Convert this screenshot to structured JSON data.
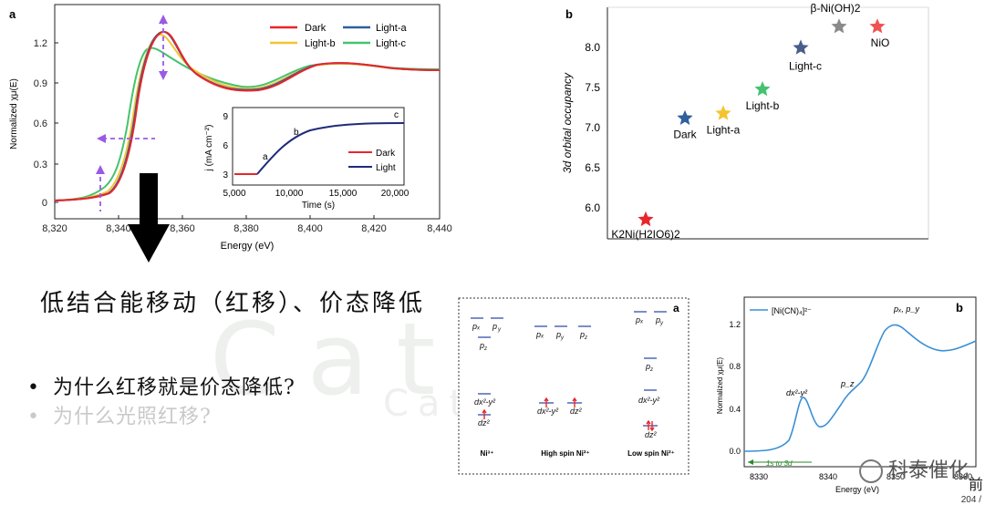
{
  "panels": {
    "xanes": {
      "letter": "a",
      "xlabel": "Energy (eV)",
      "ylabel": "Normalized χμ(E)",
      "xticks": [
        "8,320",
        "8,340",
        "8,360",
        "8,380",
        "8,400",
        "8,420",
        "8,440"
      ],
      "yticks": [
        "0",
        "0.3",
        "0.6",
        "0.9",
        "1.2"
      ],
      "legend": [
        "Dark",
        "Light-a",
        "Light-b",
        "Light-c"
      ],
      "colors": {
        "dark": "#e8262b",
        "light_a": "#2f5f9e",
        "light_b": "#f4c430",
        "light_c": "#45c26f",
        "arrow": "#9b59e6"
      }
    },
    "inset": {
      "ylabel": "j (mA cm⁻²)",
      "xlabel": "Time (s)",
      "xticks": [
        "5,000",
        "10,000",
        "15,000",
        "20,000"
      ],
      "yticks": [
        "3",
        "6",
        "9"
      ],
      "labels": [
        "a",
        "b",
        "c"
      ],
      "legend": [
        "Dark",
        "Light"
      ],
      "colors": {
        "dark": "#e8262b",
        "light": "#1f2a7a"
      }
    },
    "occupancy": {
      "letter": "b",
      "ylabel": "3d orbital occupancy",
      "yticks": [
        "6.0",
        "6.5",
        "7.0",
        "7.5",
        "8.0"
      ]
    },
    "orbitals": {
      "letter": "a",
      "columns": [
        "Ni³⁺",
        "High spin Ni²⁺",
        "Low spin Ni²⁺"
      ]
    },
    "nicn": {
      "letter": "b",
      "legend": "[Ni(CN)₄]²⁻",
      "xlabel": "Energy (eV)",
      "ylabel": "Normalized χμ(E)",
      "xticks": [
        "8330",
        "8340",
        "8350",
        "8360"
      ],
      "yticks": [
        "0.0",
        "0.4",
        "0.8",
        "1.2"
      ],
      "peak_main": "pₓ, p_y",
      "peak_pz": "p_z",
      "peak_d": "dx²-y²",
      "transition": "1s to 3d"
    }
  },
  "chart_data": [
    {
      "type": "scatter",
      "title": "",
      "ylabel": "3d orbital occupancy",
      "ylim": [
        5.8,
        8.2
      ],
      "points": [
        {
          "label": "K2Ni(H2IO6)2",
          "y": 6.0,
          "color": "#e8262b"
        },
        {
          "label": "Dark",
          "y": 7.05,
          "color": "#2f5f9e"
        },
        {
          "label": "Light-a",
          "y": 7.1,
          "color": "#f4c430"
        },
        {
          "label": "Light-b",
          "y": 7.35,
          "color": "#45c26f"
        },
        {
          "label": "Light-c",
          "y": 7.78,
          "color": "#4a5c8a"
        },
        {
          "label": "β-Ni(OH)2",
          "y": 8.0,
          "color": "#8a8a8a"
        },
        {
          "label": "NiO",
          "y": 8.0,
          "color": "#ef5350"
        }
      ]
    }
  ],
  "text": {
    "heading": "低结合能移动（红移）、价态降低",
    "bullet1": "为什么红移就是价态降低?",
    "bullet2": "为什么光照红移?",
    "wechat": "科泰催化",
    "corner": "前",
    "corner2": "204 /"
  }
}
